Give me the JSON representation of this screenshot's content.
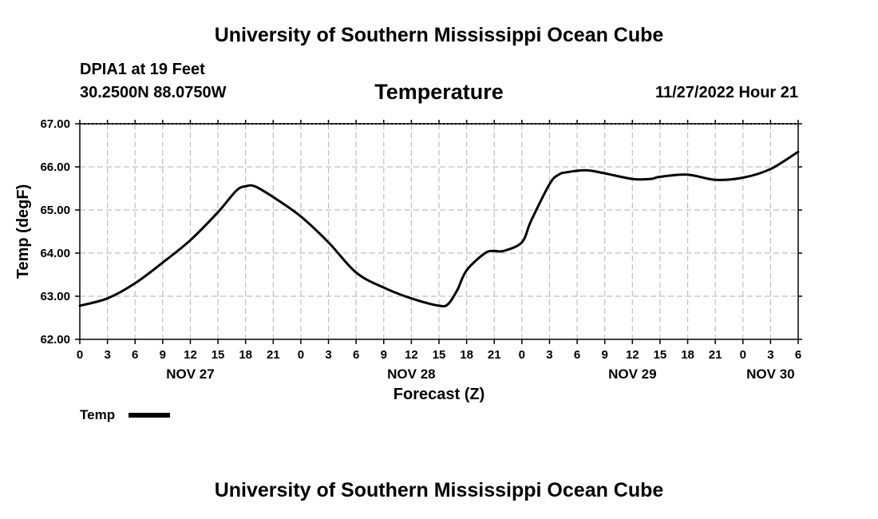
{
  "header": {
    "title": "University of Southern Mississippi Ocean Cube",
    "station": "DPIA1 at 19 Feet",
    "coords": "30.2500N  88.0750W",
    "parameter": "Temperature",
    "datetime": "11/27/2022 Hour 21"
  },
  "footer": {
    "title": "University of Southern Mississippi Ocean Cube"
  },
  "colors": {
    "line": "#000000",
    "grid": "#bfbfbf",
    "background": "#ffffff"
  },
  "chart_data": {
    "type": "line",
    "title": "Temperature",
    "xlabel": "Forecast (Z)",
    "ylabel": "Temp (degF)",
    "ylim": [
      62.0,
      67.0
    ],
    "yticks": [
      "62.00",
      "63.00",
      "64.00",
      "65.00",
      "66.00",
      "67.00"
    ],
    "xlim": [
      0,
      78
    ],
    "x_unit": "hours from NOV 27 00Z",
    "xtick_labels": [
      "0",
      "3",
      "6",
      "9",
      "12",
      "15",
      "18",
      "21",
      "0",
      "3",
      "6",
      "9",
      "12",
      "15",
      "18",
      "21",
      "0",
      "3",
      "6",
      "9",
      "12",
      "15",
      "18",
      "21",
      "0",
      "3",
      "6"
    ],
    "day_labels": [
      {
        "label": "NOV 27",
        "hour": 12
      },
      {
        "label": "NOV 28",
        "hour": 36
      },
      {
        "label": "NOV 29",
        "hour": 60
      },
      {
        "label": "NOV 30",
        "hour": 75
      }
    ],
    "grid": true,
    "legend": {
      "position": "bottom-left",
      "entries": [
        "Temp"
      ]
    },
    "series": [
      {
        "name": "Temp",
        "x": [
          0,
          3,
          6,
          9,
          12,
          15,
          17,
          18,
          19,
          21,
          24,
          27,
          30,
          33,
          36,
          39,
          40,
          41,
          42,
          44,
          45,
          46,
          48,
          49,
          51,
          52,
          53,
          55,
          57,
          60,
          62,
          63,
          66,
          69,
          72,
          75,
          78
        ],
        "values": [
          62.78,
          62.95,
          63.3,
          63.78,
          64.3,
          64.95,
          65.45,
          65.55,
          65.55,
          65.3,
          64.85,
          64.25,
          63.55,
          63.2,
          62.95,
          62.78,
          62.82,
          63.15,
          63.6,
          64.0,
          64.05,
          64.05,
          64.25,
          64.75,
          65.6,
          65.82,
          65.88,
          65.92,
          65.85,
          65.72,
          65.72,
          65.77,
          65.82,
          65.7,
          65.75,
          65.95,
          66.35
        ]
      }
    ]
  }
}
